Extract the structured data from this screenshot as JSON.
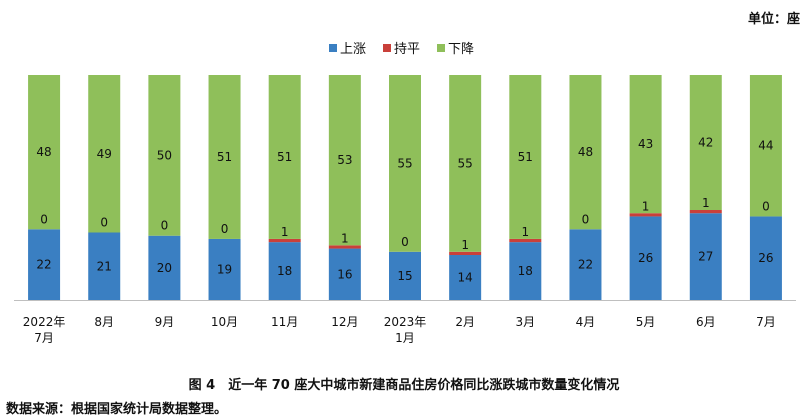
{
  "unit_label": "单位：座",
  "caption": "图 4　近一年 70 座大中城市新建商品住房价格同比涨跌城市数量变化情况",
  "source": "数据来源：根据国家统计局数据整理。",
  "chart_data": {
    "type": "bar",
    "stacked": true,
    "categories": [
      [
        "2022年",
        "7月"
      ],
      [
        "8月"
      ],
      [
        "9月"
      ],
      [
        "10月"
      ],
      [
        "11月"
      ],
      [
        "12月"
      ],
      [
        "2023年",
        "1月"
      ],
      [
        "2月"
      ],
      [
        "3月"
      ],
      [
        "4月"
      ],
      [
        "5月"
      ],
      [
        "6月"
      ],
      [
        "7月"
      ]
    ],
    "series": [
      {
        "name": "上涨",
        "color": "#3a7fc2",
        "values": [
          22,
          21,
          20,
          19,
          18,
          16,
          15,
          14,
          18,
          22,
          26,
          27,
          26
        ]
      },
      {
        "name": "持平",
        "color": "#c9403a",
        "values": [
          0,
          0,
          0,
          0,
          1,
          1,
          0,
          1,
          1,
          0,
          1,
          1,
          0
        ]
      },
      {
        "name": "下降",
        "color": "#8fbf5a",
        "values": [
          48,
          49,
          50,
          51,
          51,
          53,
          55,
          55,
          51,
          48,
          43,
          42,
          44
        ]
      }
    ],
    "ylim": [
      0,
      70
    ],
    "legend_position": "top-center",
    "grid": false
  }
}
